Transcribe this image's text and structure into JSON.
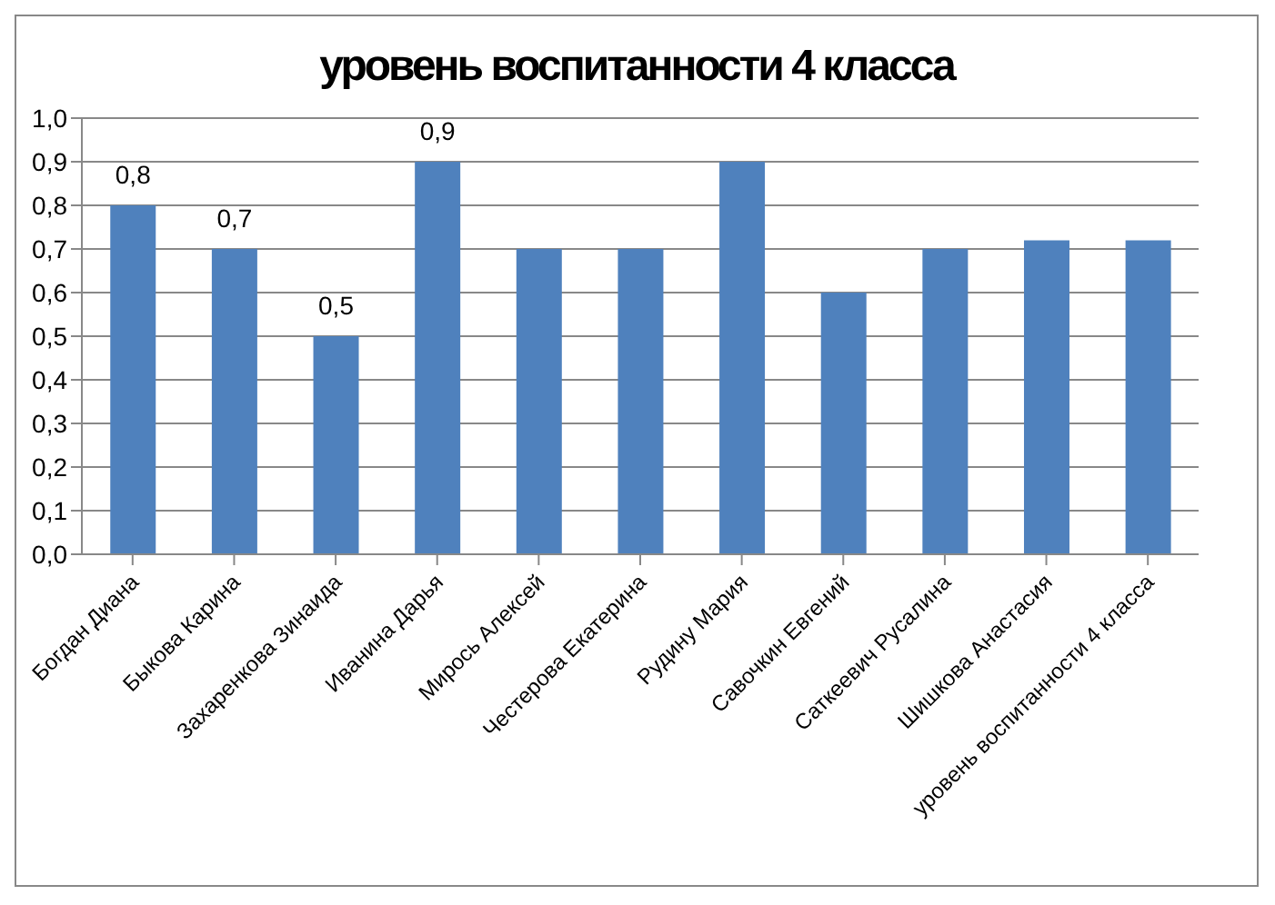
{
  "chart_data": {
    "type": "bar",
    "title": "уровень воспитанности 4 класса",
    "categories": [
      "Богдан Диана",
      "Быкова Карина",
      "Захаренкова Зинаида",
      "Иванина Дарья",
      "Мирось Алексей",
      "Честерова Екатерина",
      "Рудину Мария",
      "Савочкин Евгений",
      "Саткеевич Русалина",
      "Шишкова Анастасия",
      "уровень воспитанности 4 класса"
    ],
    "values": [
      0.8,
      0.7,
      0.5,
      0.9,
      0.7,
      0.7,
      0.9,
      0.6,
      0.7,
      0.72,
      0.72
    ],
    "value_labels": [
      "0,8",
      "0,7",
      "0,5",
      "0,9",
      null,
      null,
      null,
      null,
      null,
      null,
      null
    ],
    "color": "#4f81bd",
    "ylim": [
      0,
      1
    ],
    "yticks": [
      {
        "value": 0,
        "label": "0,0"
      },
      {
        "value": 0.1,
        "label": "0,1"
      },
      {
        "value": 0.2,
        "label": "0,2"
      },
      {
        "value": 0.3,
        "label": "0,3"
      },
      {
        "value": 0.4,
        "label": "0,4"
      },
      {
        "value": 0.5,
        "label": "0,5"
      },
      {
        "value": 0.6,
        "label": "0,6"
      },
      {
        "value": 0.7,
        "label": "0,7"
      },
      {
        "value": 0.8,
        "label": "0,8"
      },
      {
        "value": 0.9,
        "label": "0,9"
      },
      {
        "value": 1,
        "label": "1,0"
      }
    ],
    "grid": "y",
    "legend": false
  }
}
